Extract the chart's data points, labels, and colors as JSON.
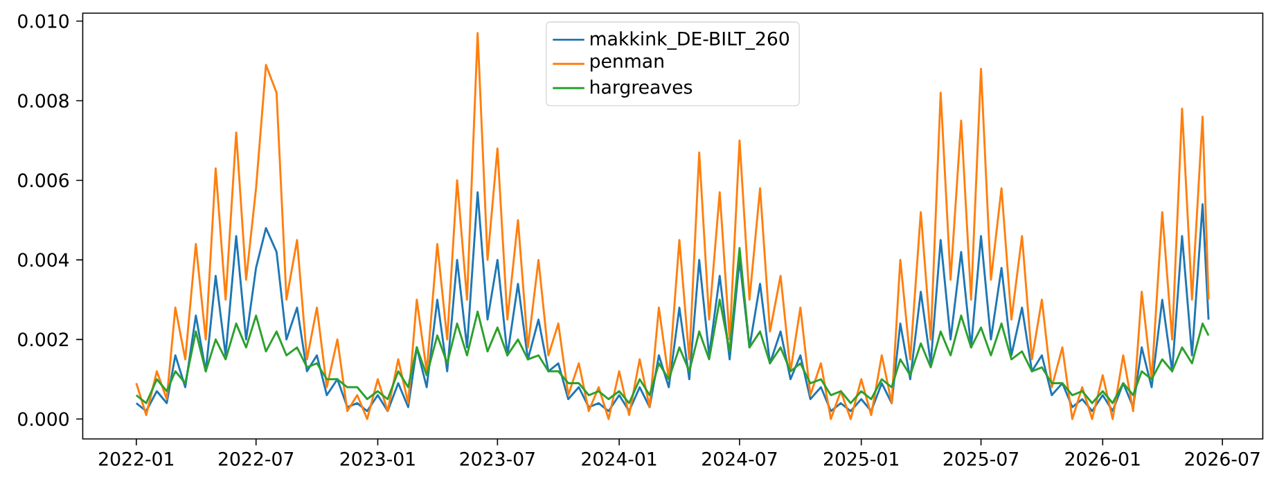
{
  "chart_data": {
    "type": "line",
    "x": [
      "2022-01-01",
      "2022-01-16",
      "2022-02-01",
      "2022-02-16",
      "2022-03-01",
      "2022-03-16",
      "2022-04-01",
      "2022-04-16",
      "2022-05-01",
      "2022-05-16",
      "2022-06-01",
      "2022-06-16",
      "2022-07-01",
      "2022-07-16",
      "2022-08-01",
      "2022-08-16",
      "2022-09-01",
      "2022-09-16",
      "2022-10-01",
      "2022-10-16",
      "2022-11-01",
      "2022-11-16",
      "2022-12-01",
      "2022-12-16",
      "2023-01-01",
      "2023-01-16",
      "2023-02-01",
      "2023-02-16",
      "2023-03-01",
      "2023-03-16",
      "2023-04-01",
      "2023-04-16",
      "2023-05-01",
      "2023-05-16",
      "2023-06-01",
      "2023-06-16",
      "2023-07-01",
      "2023-07-16",
      "2023-08-01",
      "2023-08-16",
      "2023-09-01",
      "2023-09-16",
      "2023-10-01",
      "2023-10-16",
      "2023-11-01",
      "2023-11-16",
      "2023-12-01",
      "2023-12-16",
      "2024-01-01",
      "2024-01-16",
      "2024-02-01",
      "2024-02-16",
      "2024-03-01",
      "2024-03-16",
      "2024-04-01",
      "2024-04-16",
      "2024-05-01",
      "2024-05-16",
      "2024-06-01",
      "2024-06-16",
      "2024-07-01",
      "2024-07-16",
      "2024-08-01",
      "2024-08-16",
      "2024-09-01",
      "2024-09-16",
      "2024-10-01",
      "2024-10-16",
      "2024-11-01",
      "2024-11-16",
      "2024-12-01",
      "2024-12-16",
      "2025-01-01",
      "2025-01-16",
      "2025-02-01",
      "2025-02-16",
      "2025-03-01",
      "2025-03-16",
      "2025-04-01",
      "2025-04-16",
      "2025-05-01",
      "2025-05-16",
      "2025-06-01",
      "2025-06-16",
      "2025-07-01",
      "2025-07-16",
      "2025-08-01",
      "2025-08-16",
      "2025-09-01",
      "2025-09-16",
      "2025-10-01",
      "2025-10-16",
      "2025-11-01",
      "2025-11-16",
      "2025-12-01",
      "2025-12-16",
      "2026-01-01",
      "2026-01-16",
      "2026-02-01",
      "2026-02-16",
      "2026-03-01",
      "2026-03-16",
      "2026-04-01",
      "2026-04-16",
      "2026-05-01",
      "2026-05-16",
      "2026-06-01",
      "2026-06-10"
    ],
    "series": [
      {
        "name": "makkink_DE-BILT_260",
        "color": "#1f77b4",
        "values": [
          0.0004,
          0.0002,
          0.0007,
          0.0004,
          0.0016,
          0.0008,
          0.0026,
          0.0012,
          0.0036,
          0.0016,
          0.0046,
          0.002,
          0.0038,
          0.0048,
          0.0042,
          0.002,
          0.0028,
          0.0012,
          0.0016,
          0.0006,
          0.001,
          0.0003,
          0.0004,
          0.0002,
          0.0006,
          0.0002,
          0.0009,
          0.0003,
          0.0018,
          0.0008,
          0.003,
          0.0012,
          0.004,
          0.0018,
          0.0057,
          0.0025,
          0.004,
          0.0016,
          0.0034,
          0.0015,
          0.0025,
          0.0012,
          0.0014,
          0.0005,
          0.0008,
          0.0003,
          0.0004,
          0.0002,
          0.0006,
          0.0002,
          0.0008,
          0.0003,
          0.0016,
          0.0008,
          0.0028,
          0.001,
          0.004,
          0.0016,
          0.0036,
          0.0015,
          0.004,
          0.0018,
          0.0034,
          0.0014,
          0.0022,
          0.001,
          0.0016,
          0.0005,
          0.0008,
          0.0002,
          0.0004,
          0.0002,
          0.0005,
          0.0002,
          0.0009,
          0.0004,
          0.0024,
          0.001,
          0.0032,
          0.0014,
          0.0045,
          0.002,
          0.0042,
          0.0018,
          0.0046,
          0.002,
          0.0038,
          0.0016,
          0.0028,
          0.0012,
          0.0016,
          0.0006,
          0.0009,
          0.0003,
          0.0005,
          0.0002,
          0.0006,
          0.0002,
          0.0009,
          0.0003,
          0.0018,
          0.0008,
          0.003,
          0.0012,
          0.0046,
          0.0016,
          0.0054,
          0.0025
        ]
      },
      {
        "name": "penman",
        "color": "#ff7f0e",
        "values": [
          0.0009,
          0.0001,
          0.0012,
          0.0005,
          0.0028,
          0.0015,
          0.0044,
          0.002,
          0.0063,
          0.003,
          0.0072,
          0.0035,
          0.0058,
          0.0089,
          0.0082,
          0.003,
          0.0045,
          0.0015,
          0.0028,
          0.0008,
          0.002,
          0.0002,
          0.0006,
          0.0,
          0.001,
          0.0002,
          0.0015,
          0.0004,
          0.003,
          0.0012,
          0.0044,
          0.002,
          0.006,
          0.003,
          0.0097,
          0.004,
          0.0068,
          0.0025,
          0.005,
          0.0018,
          0.004,
          0.0016,
          0.0024,
          0.0006,
          0.0014,
          0.0002,
          0.0008,
          0.0,
          0.0012,
          0.0001,
          0.0015,
          0.0003,
          0.0028,
          0.001,
          0.0045,
          0.0015,
          0.0067,
          0.0025,
          0.0057,
          0.002,
          0.007,
          0.003,
          0.0058,
          0.0022,
          0.0036,
          0.0012,
          0.0028,
          0.0006,
          0.0014,
          0.0,
          0.0007,
          0.0,
          0.001,
          0.0001,
          0.0016,
          0.0004,
          0.004,
          0.0015,
          0.0052,
          0.002,
          0.0082,
          0.0035,
          0.0075,
          0.003,
          0.0088,
          0.0035,
          0.0058,
          0.0025,
          0.0046,
          0.0015,
          0.003,
          0.0008,
          0.0018,
          0.0,
          0.0008,
          0.0,
          0.0011,
          0.0,
          0.0016,
          0.0002,
          0.0032,
          0.001,
          0.0052,
          0.002,
          0.0078,
          0.003,
          0.0076,
          0.003
        ]
      },
      {
        "name": "hargreaves",
        "color": "#2ca02c",
        "values": [
          0.0006,
          0.0004,
          0.001,
          0.0007,
          0.0012,
          0.0009,
          0.0022,
          0.0012,
          0.002,
          0.0015,
          0.0024,
          0.0018,
          0.0026,
          0.0017,
          0.0022,
          0.0016,
          0.0018,
          0.0013,
          0.0014,
          0.001,
          0.001,
          0.0008,
          0.0008,
          0.0005,
          0.0007,
          0.0005,
          0.0012,
          0.0008,
          0.0018,
          0.0011,
          0.0021,
          0.0014,
          0.0024,
          0.0016,
          0.0027,
          0.0017,
          0.0023,
          0.0016,
          0.002,
          0.0015,
          0.0016,
          0.0012,
          0.0012,
          0.0009,
          0.0009,
          0.0006,
          0.0007,
          0.0005,
          0.0007,
          0.0004,
          0.001,
          0.0006,
          0.0014,
          0.001,
          0.0018,
          0.0012,
          0.0022,
          0.0015,
          0.003,
          0.0017,
          0.0043,
          0.0018,
          0.0022,
          0.0014,
          0.0018,
          0.0012,
          0.0014,
          0.0009,
          0.001,
          0.0006,
          0.0007,
          0.0004,
          0.0007,
          0.0005,
          0.001,
          0.0008,
          0.0015,
          0.0011,
          0.0019,
          0.0013,
          0.0022,
          0.0016,
          0.0026,
          0.0018,
          0.0023,
          0.0016,
          0.0024,
          0.0015,
          0.0017,
          0.0012,
          0.0013,
          0.0009,
          0.0009,
          0.0006,
          0.0007,
          0.0004,
          0.0007,
          0.0004,
          0.0009,
          0.0006,
          0.0012,
          0.001,
          0.0015,
          0.0012,
          0.0018,
          0.0014,
          0.0024,
          0.0021
        ]
      }
    ],
    "xlim": [
      "2021-10-12",
      "2026-08-31"
    ],
    "xticks": [
      "2022-01",
      "2022-07",
      "2023-01",
      "2023-07",
      "2024-01",
      "2024-07",
      "2025-01",
      "2025-07",
      "2026-01",
      "2026-07"
    ],
    "ylim": [
      -0.0005,
      0.0102
    ],
    "yticks": [
      {
        "value": 0,
        "label": "0.000"
      },
      {
        "value": 0.002,
        "label": "0.002"
      },
      {
        "value": 0.004,
        "label": "0.004"
      },
      {
        "value": 0.006,
        "label": "0.006"
      },
      {
        "value": 0.008,
        "label": "0.008"
      },
      {
        "value": 0.01,
        "label": "0.010"
      }
    ],
    "legend": "top",
    "grid": false,
    "marker": "none",
    "line_style": "solid"
  }
}
